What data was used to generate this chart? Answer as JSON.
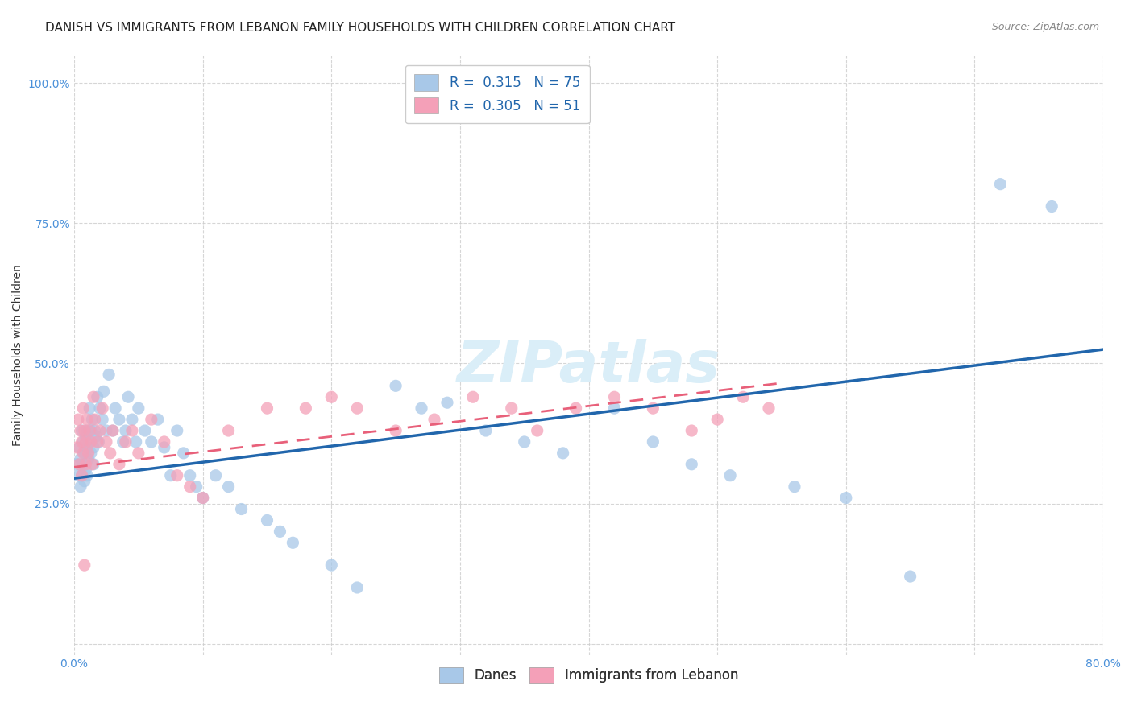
{
  "title": "DANISH VS IMMIGRANTS FROM LEBANON FAMILY HOUSEHOLDS WITH CHILDREN CORRELATION CHART",
  "source": "Source: ZipAtlas.com",
  "ylabel": "Family Households with Children",
  "watermark": "ZIPatlas",
  "xlim": [
    0.0,
    0.8
  ],
  "ylim": [
    -0.02,
    1.05
  ],
  "xticks": [
    0.0,
    0.1,
    0.2,
    0.3,
    0.4,
    0.5,
    0.6,
    0.7,
    0.8
  ],
  "xticklabels": [
    "0.0%",
    "",
    "",
    "",
    "",
    "",
    "",
    "",
    "80.0%"
  ],
  "yticks": [
    0.0,
    0.25,
    0.5,
    0.75,
    1.0
  ],
  "yticklabels": [
    "",
    "25.0%",
    "50.0%",
    "75.0%",
    "100.0%"
  ],
  "danes_R": 0.315,
  "danes_N": 75,
  "lebanon_R": 0.305,
  "lebanon_N": 51,
  "danes_color": "#a8c8e8",
  "lebanon_color": "#f4a0b8",
  "danes_line_color": "#2166ac",
  "lebanon_line_color": "#e8607a",
  "danes_x": [
    0.002,
    0.003,
    0.004,
    0.005,
    0.005,
    0.006,
    0.006,
    0.007,
    0.007,
    0.008,
    0.008,
    0.009,
    0.009,
    0.01,
    0.01,
    0.01,
    0.011,
    0.012,
    0.012,
    0.013,
    0.013,
    0.014,
    0.015,
    0.015,
    0.016,
    0.017,
    0.018,
    0.019,
    0.02,
    0.022,
    0.023,
    0.025,
    0.027,
    0.03,
    0.032,
    0.035,
    0.038,
    0.04,
    0.042,
    0.045,
    0.048,
    0.05,
    0.055,
    0.06,
    0.065,
    0.07,
    0.075,
    0.08,
    0.085,
    0.09,
    0.095,
    0.1,
    0.11,
    0.12,
    0.13,
    0.15,
    0.16,
    0.17,
    0.2,
    0.22,
    0.25,
    0.27,
    0.29,
    0.32,
    0.35,
    0.38,
    0.42,
    0.45,
    0.48,
    0.51,
    0.56,
    0.6,
    0.65,
    0.72,
    0.76
  ],
  "danes_y": [
    0.32,
    0.3,
    0.35,
    0.33,
    0.28,
    0.38,
    0.3,
    0.36,
    0.32,
    0.34,
    0.29,
    0.37,
    0.31,
    0.35,
    0.38,
    0.3,
    0.33,
    0.42,
    0.36,
    0.38,
    0.34,
    0.4,
    0.35,
    0.32,
    0.38,
    0.37,
    0.44,
    0.36,
    0.42,
    0.4,
    0.45,
    0.38,
    0.48,
    0.38,
    0.42,
    0.4,
    0.36,
    0.38,
    0.44,
    0.4,
    0.36,
    0.42,
    0.38,
    0.36,
    0.4,
    0.35,
    0.3,
    0.38,
    0.34,
    0.3,
    0.28,
    0.26,
    0.3,
    0.28,
    0.24,
    0.22,
    0.2,
    0.18,
    0.14,
    0.1,
    0.46,
    0.42,
    0.43,
    0.38,
    0.36,
    0.34,
    0.42,
    0.36,
    0.32,
    0.3,
    0.28,
    0.26,
    0.12,
    0.82,
    0.78
  ],
  "lebanon_x": [
    0.002,
    0.003,
    0.004,
    0.005,
    0.006,
    0.006,
    0.007,
    0.007,
    0.008,
    0.009,
    0.009,
    0.01,
    0.011,
    0.012,
    0.013,
    0.014,
    0.015,
    0.016,
    0.018,
    0.02,
    0.022,
    0.025,
    0.028,
    0.03,
    0.035,
    0.04,
    0.045,
    0.05,
    0.06,
    0.07,
    0.08,
    0.09,
    0.1,
    0.12,
    0.15,
    0.18,
    0.2,
    0.22,
    0.25,
    0.28,
    0.31,
    0.34,
    0.36,
    0.39,
    0.42,
    0.45,
    0.48,
    0.5,
    0.52,
    0.54,
    0.008
  ],
  "lebanon_y": [
    0.35,
    0.4,
    0.32,
    0.38,
    0.36,
    0.3,
    0.42,
    0.34,
    0.38,
    0.36,
    0.32,
    0.4,
    0.34,
    0.38,
    0.36,
    0.32,
    0.44,
    0.4,
    0.36,
    0.38,
    0.42,
    0.36,
    0.34,
    0.38,
    0.32,
    0.36,
    0.38,
    0.34,
    0.4,
    0.36,
    0.3,
    0.28,
    0.26,
    0.38,
    0.42,
    0.42,
    0.44,
    0.42,
    0.38,
    0.4,
    0.44,
    0.42,
    0.38,
    0.42,
    0.44,
    0.42,
    0.38,
    0.4,
    0.44,
    0.42,
    0.14
  ],
  "danes_line_x": [
    0.0,
    0.8
  ],
  "danes_line_y": [
    0.295,
    0.525
  ],
  "lebanon_line_x": [
    0.0,
    0.55
  ],
  "lebanon_line_y": [
    0.315,
    0.465
  ],
  "grid_color": "#cccccc",
  "background_color": "#ffffff",
  "title_fontsize": 11,
  "axis_label_fontsize": 10,
  "tick_fontsize": 10,
  "legend_fontsize": 12,
  "watermark_fontsize": 52,
  "watermark_color": "#daeef8",
  "scatter_size": 120,
  "scatter_alpha": 0.75
}
